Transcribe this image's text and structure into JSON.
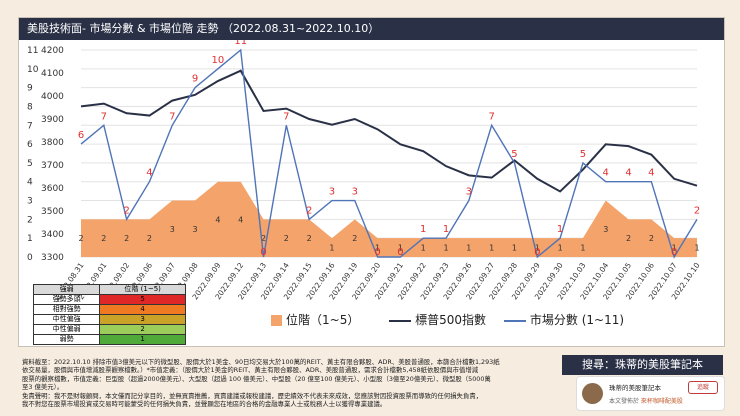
{
  "header": {
    "title": "美股技術面- 市場分數 & 市場位階 走勢 （2022.08.31~2022.10.10）"
  },
  "chart_data": {
    "type": "combo",
    "categories": [
      "2022.08.31",
      "2022.09.01",
      "2022.09.02",
      "2022.09.06",
      "2022.09.07",
      "2022.09.08",
      "2022.09.09",
      "2022.09.12",
      "2022.09.13",
      "2022.09.14",
      "2022.09.15",
      "2022.09.16",
      "2022.09.19",
      "2022.09.20",
      "2022.09.21",
      "2022.09.22",
      "2022.09.23",
      "2022.09.26",
      "2022.09.27",
      "2022.09.28",
      "2022.09.29",
      "2022.09.30",
      "2022.10.03",
      "2022.10.04",
      "2022.10.05",
      "2022.10.06",
      "2022.10.07",
      "2022.10.10"
    ],
    "left_axis": {
      "min": 0,
      "max": 11,
      "ticks": [
        0,
        1,
        2,
        3,
        4,
        5,
        6,
        7,
        8,
        9,
        10,
        11
      ]
    },
    "right_axis": {
      "min": 3300,
      "max": 4200,
      "ticks": [
        3300,
        3400,
        3500,
        3600,
        3700,
        3800,
        3900,
        4000,
        4100,
        4200
      ]
    },
    "series": [
      {
        "name": "位階 (1~5)",
        "type": "area",
        "axis": "left",
        "color": "#f4a36a",
        "values": [
          2,
          2,
          2,
          2,
          3,
          3,
          4,
          4,
          2,
          2,
          2,
          1,
          2,
          1,
          1,
          1,
          1,
          1,
          1,
          1,
          1,
          1,
          1,
          3,
          2,
          2,
          1,
          1
        ],
        "labels": [
          "2",
          "2",
          "2",
          "2",
          "3",
          "3",
          "4",
          "4",
          "2",
          "2",
          "2",
          "1",
          "2",
          "1",
          "1",
          "1",
          "1",
          "1",
          "1",
          "1",
          "1",
          "1",
          "1",
          "3",
          "2",
          "2",
          "1",
          "1"
        ]
      },
      {
        "name": "標普500指數",
        "type": "line",
        "axis": "right",
        "color": "#2a3146",
        "values": [
          3955,
          3967,
          3925,
          3915,
          3980,
          4005,
          4065,
          4110,
          3935,
          3945,
          3900,
          3875,
          3900,
          3855,
          3790,
          3760,
          3695,
          3655,
          3645,
          3720,
          3640,
          3585,
          3680,
          3790,
          3782,
          3745,
          3640,
          3610
        ]
      },
      {
        "name": "市場分數 (1~11)",
        "type": "line",
        "axis": "left",
        "color": "#4f74b7",
        "values": [
          6,
          7,
          2,
          4,
          7,
          9,
          10,
          11,
          0,
          7,
          2,
          3,
          3,
          0,
          0,
          1,
          1,
          3,
          7,
          5,
          0,
          1,
          5,
          4,
          4,
          4,
          0,
          2
        ],
        "labels": [
          "6",
          "7",
          "2",
          "4",
          "7",
          "9",
          "10",
          "11",
          "0",
          "7",
          "2",
          "3",
          "3",
          "0",
          "0",
          "1",
          "1",
          "3",
          "7",
          "5",
          "0",
          "1",
          "5",
          "4",
          "4",
          "4",
          "0",
          "2"
        ]
      }
    ]
  },
  "level_table": {
    "headers": [
      "強弱",
      "位階 (1~5)"
    ],
    "rows": [
      {
        "label": "強勢多頭",
        "value": "5",
        "color": "#e02727"
      },
      {
        "label": "相對強勢",
        "value": "4",
        "color": "#f07a22"
      },
      {
        "label": "中性偏強",
        "value": "3",
        "color": "#c9a227"
      },
      {
        "label": "中性偏弱",
        "value": "2",
        "color": "#9ccd5a"
      },
      {
        "label": "弱勢",
        "value": "1",
        "color": "#4faa3a"
      }
    ]
  },
  "legend": {
    "area": "位階（1~5）",
    "sp500": "標普500指數",
    "score": "市場分數 (1~11)"
  },
  "notes": {
    "line1": "資料截至：2022.10.10 排除市值3億美元以下的微型股、股價大於1美金、90日均交易大於100萬的REIT、黃主有限合夥股、ADR、美股普通股，本篩合計檔數1,293紙",
    "line2": "依交易量，股價與市值增減股票觀察檔數。）*市值定義：（股價大於1美金的REIT、黃主有限合夥股、ADR、美股普通股，需求合計檔數5,458紙依股價與市值增減",
    "line3": "股票的觀察檔數，市值定義：巨型股（超過2000億美元）、大型股（超過 100 億美元）、中型股（20 億至100 億美元）、小型股（3億至20億美元）、微型股（5000萬",
    "line4": "至3 億美元）。",
    "line5": "免責聲明：我不是財報顧問，本文僅而記分享目的，並無買賣推薦，買賣建議或報稅建議，歷史績效不代表未來成效，您應該對因投資股票而導致的任何損失負責，",
    "line6": "我不對您在股票市場投資或交易時可能蒙受的任何損失負責，並聲顯您在地區的合格的金融專業人士或稅務人士以獲得專業建議。"
  },
  "search": {
    "label": "搜尋：珠蒂的美股筆記本"
  },
  "author": {
    "name": "珠蒂的美股筆記本",
    "follow": "追蹤",
    "sub_prefix": "本文發佈於 ",
    "sub_link": "來杯咖啡配美股"
  }
}
